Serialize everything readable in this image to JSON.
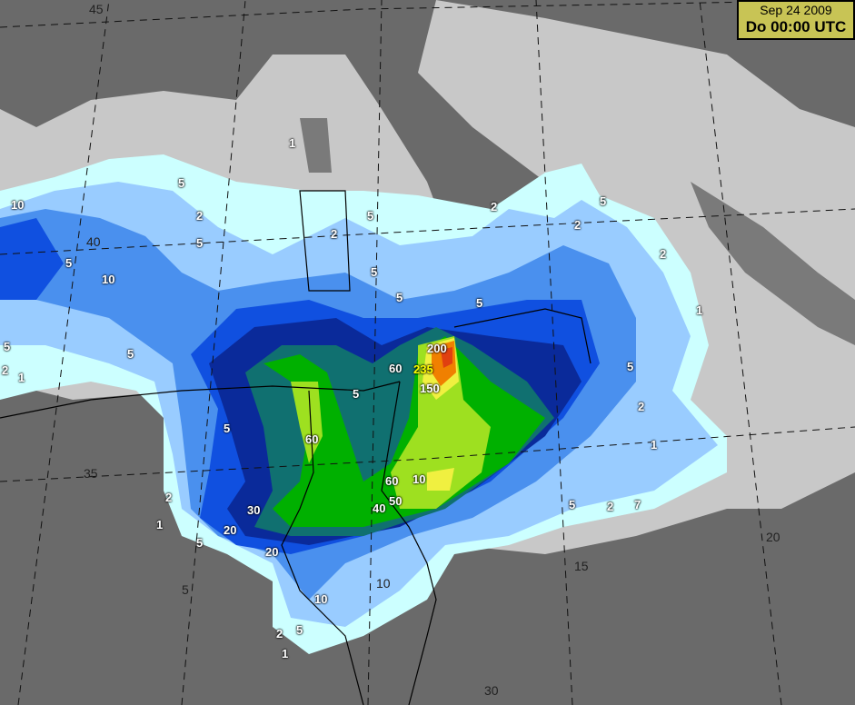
{
  "timestamp": {
    "date": "Sep 24 2009",
    "time": "Do 00:00 UTC"
  },
  "grid_labels": [
    "45",
    "40",
    "35",
    "30",
    "20",
    "15",
    "10",
    "5"
  ],
  "contour_labels": [
    "10",
    "5",
    "2",
    "5",
    "10",
    "5",
    "1",
    "2",
    "5",
    "5",
    "2",
    "5",
    "1",
    "5",
    "2",
    "2",
    "5",
    "1",
    "2",
    "5",
    "2",
    "5",
    "5",
    "1",
    "2",
    "5",
    "5",
    "60",
    "30",
    "20",
    "5",
    "10",
    "5",
    "2",
    "1",
    "60",
    "235",
    "200",
    "150",
    "10",
    "60",
    "50",
    "40",
    "5",
    "2",
    "7",
    "1",
    "20"
  ],
  "colors": {
    "sea": "#c8c8c8",
    "land": "#6e6e6e",
    "light_cyan": "#ccffff",
    "light_blue": "#99ccff",
    "mid_blue": "#4a90ee",
    "blue": "#1050e0",
    "navy": "#0a2a9a",
    "teal": "#107070",
    "green": "#00b000",
    "lime": "#9ee020",
    "yellow": "#f0f040",
    "orange": "#f08000",
    "red": "#e04010",
    "label_box": "#c8c455"
  }
}
